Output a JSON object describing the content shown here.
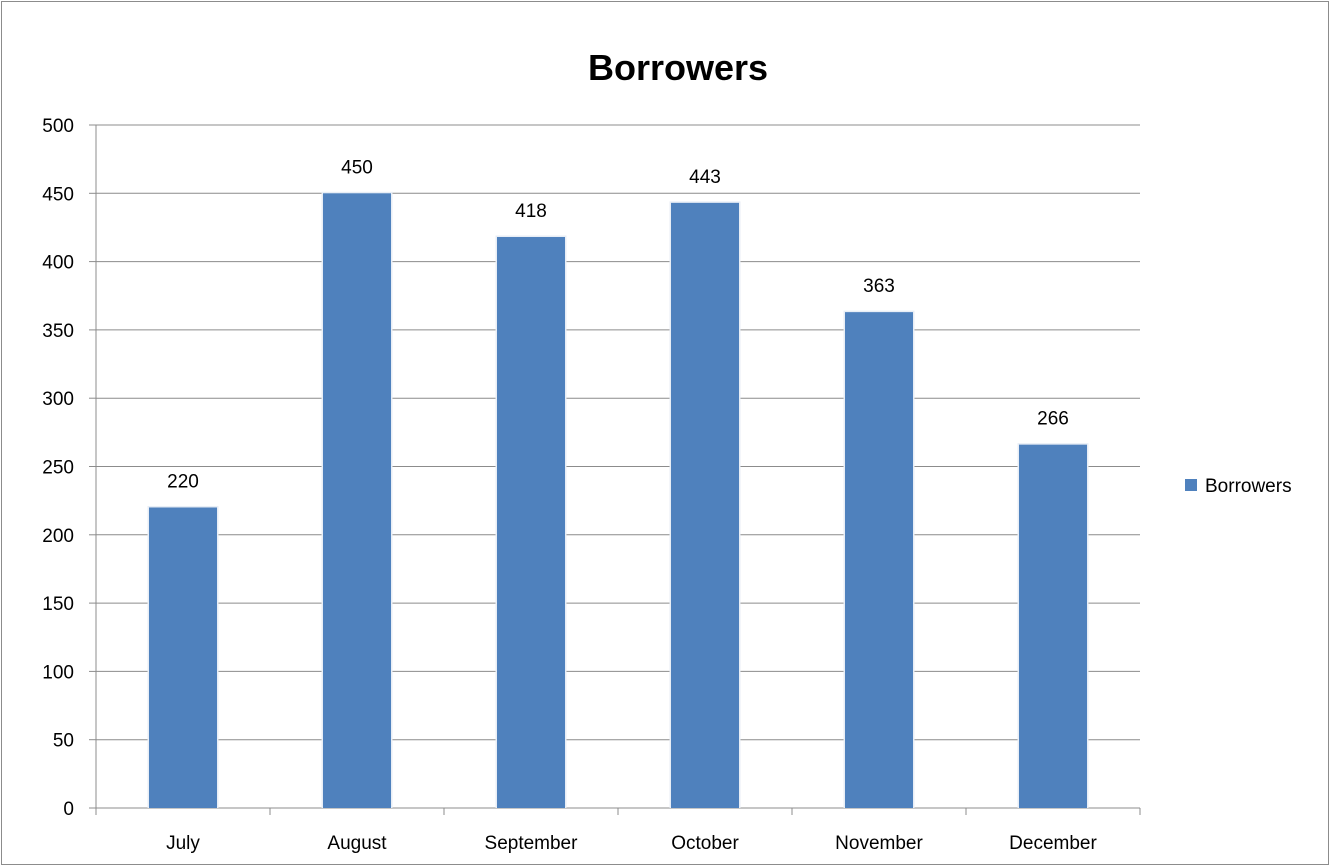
{
  "chart_data": {
    "type": "bar",
    "title": "Borrowers",
    "xlabel": "",
    "ylabel": "",
    "categories": [
      "July",
      "August",
      "September",
      "October",
      "November",
      "December"
    ],
    "series": [
      {
        "name": "Borrowers",
        "values": [
          220,
          450,
          418,
          443,
          363,
          266
        ],
        "color": "#4f81bd"
      }
    ],
    "ylim": [
      0,
      500
    ],
    "yticks": [
      0,
      50,
      100,
      150,
      200,
      250,
      300,
      350,
      400,
      450,
      500
    ],
    "grid": true,
    "legend": "right",
    "data_labels": true
  }
}
